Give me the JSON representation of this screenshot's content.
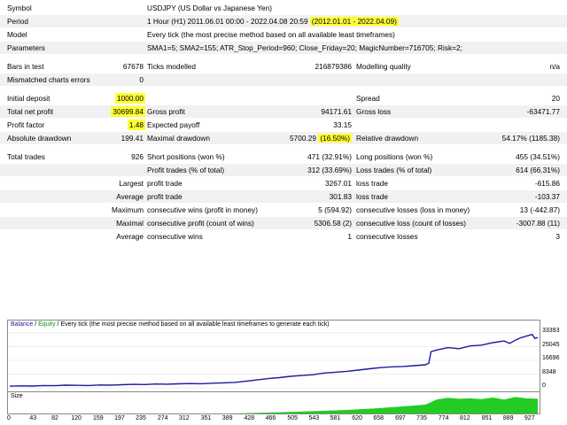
{
  "report": {
    "symbol_label": "Symbol",
    "symbol_value": "USDJPY (US Dollar vs Japanese Yen)",
    "period_label": "Period",
    "period_value": "1 Hour (H1) 2011.06.01 00:00 - 2022.04.08 20:59",
    "period_hl": "(2012.01.01 - 2022.04.09)",
    "model_label": "Model",
    "model_value": "Every tick (the most precise method based on all available least timeframes)",
    "params_label": "Parameters",
    "params_value": "SMA1=5; SMA2=155; ATR_Stop_Period=960; Close_Friday=20; MagicNumber=716705; Risk=2;",
    "bars_label": "Bars in test",
    "bars_value": "67678",
    "ticks_label": "Ticks modelled",
    "ticks_value": "216879386",
    "mq_label": "Modelling quality",
    "mq_value": "n/a",
    "mce_label": "Mismatched charts errors",
    "mce_value": "0",
    "deposit_label": "Initial deposit",
    "deposit_value": "1000.00",
    "spread_label": "Spread",
    "spread_value": "20",
    "netprofit_label": "Total net profit",
    "netprofit_value": "30699.84",
    "grossprofit_label": "Gross profit",
    "grossprofit_value": "94171.61",
    "grossloss_label": "Gross loss",
    "grossloss_value": "-63471.77",
    "pf_label": "Profit factor",
    "pf_value": "1.48",
    "ep_label": "Expected payoff",
    "ep_value": "33.15",
    "absdd_label": "Absolute drawdown",
    "absdd_value": "199.41",
    "maxdd_label": "Maximal drawdown",
    "maxdd_value": "5700.29",
    "maxdd_hl": "(16.50%)",
    "reldd_label": "Relative drawdown",
    "reldd_value": "54.17% (1185.38)",
    "tt_label": "Total trades",
    "tt_value": "926",
    "sp_label": "Short positions (won %)",
    "sp_value": "471 (32.91%)",
    "lp_label": "Long positions (won %)",
    "lp_value": "455 (34.51%)",
    "pt_label": "Profit trades (% of total)",
    "pt_value": "312 (33.69%)",
    "lt_label": "Loss trades (% of total)",
    "lt_value": "614 (66.31%)",
    "largest": "Largest",
    "average": "Average",
    "maximum": "Maximum",
    "maximal": "Maximal",
    "profit_trade": "profit trade",
    "loss_trade": "loss trade",
    "lpt_value": "3267.01",
    "llt_value": "-615.86",
    "apt_value": "301.83",
    "alt_value": "-103.37",
    "mcw_label": "consecutive wins (profit in money)",
    "mcw_value": "5 (594.92)",
    "mcl_label": "consecutive losses (loss in money)",
    "mcl_value": "13 (-442.87)",
    "mcp_label": "consecutive profit (count of wins)",
    "mcp_value": "5306.58 (2)",
    "mcloss_label": "consecutive loss (count of losses)",
    "mcloss_value": "-3007.88 (11)",
    "acw_label": "consecutive wins",
    "acw_value": "1",
    "acl_label": "consecutive losses",
    "acl_value": "3"
  },
  "chart_legend": {
    "balance": "Balance",
    "sep": " / ",
    "equity": "Equity",
    "rest": " / Every tick (the most precise method based on all available least timeframes to generate each tick)"
  },
  "size_label": "Size",
  "colors": {
    "balance": "#1a1aa0",
    "equity": "#00a000",
    "highlight": "#ffff33",
    "size_bar": "#22cc22"
  },
  "chart_data": {
    "type": "line",
    "yticks": [
      "33393",
      "25045",
      "16696",
      "8348",
      "0"
    ],
    "ylim": [
      0,
      34500
    ],
    "xticks": [
      "0",
      "43",
      "82",
      "120",
      "159",
      "197",
      "235",
      "274",
      "312",
      "351",
      "389",
      "428",
      "466",
      "505",
      "543",
      "581",
      "620",
      "658",
      "697",
      "735",
      "774",
      "812",
      "851",
      "889",
      "927"
    ],
    "xlim": [
      0,
      940
    ],
    "series": [
      {
        "x": [
          0,
          20,
          40,
          60,
          80,
          100,
          120,
          140,
          160,
          180,
          200,
          220,
          240,
          260,
          280,
          300,
          320,
          340,
          360,
          380,
          400,
          420,
          440,
          460,
          480,
          500,
          520,
          540,
          560,
          580,
          600,
          620,
          640,
          660,
          680,
          700,
          720,
          740,
          746,
          750,
          760,
          780,
          800,
          820,
          840,
          860,
          880,
          890,
          900,
          910,
          920,
          930,
          935,
          940
        ],
        "y": [
          1000,
          1200,
          1100,
          1400,
          1300,
          1600,
          1500,
          1400,
          1700,
          1600,
          1900,
          2100,
          2000,
          2300,
          2200,
          2400,
          2600,
          2500,
          2800,
          3000,
          3300,
          4000,
          4800,
          5600,
          6200,
          7000,
          7500,
          8000,
          9000,
          9500,
          10000,
          10800,
          11600,
          12300,
          12800,
          13000,
          13500,
          14000,
          15000,
          22000,
          23000,
          24500,
          23800,
          25500,
          26000,
          27500,
          28500,
          27000,
          29000,
          30500,
          31500,
          32500,
          30000,
          30699
        ]
      }
    ],
    "size_series": {
      "x": [
        0,
        400,
        450,
        500,
        550,
        600,
        650,
        700,
        740,
        760,
        780,
        800,
        820,
        840,
        860,
        880,
        900,
        920,
        940
      ],
      "y": [
        0,
        0,
        3,
        6,
        10,
        14,
        20,
        28,
        35,
        55,
        62,
        58,
        60,
        57,
        63,
        55,
        65,
        60,
        58
      ]
    }
  }
}
